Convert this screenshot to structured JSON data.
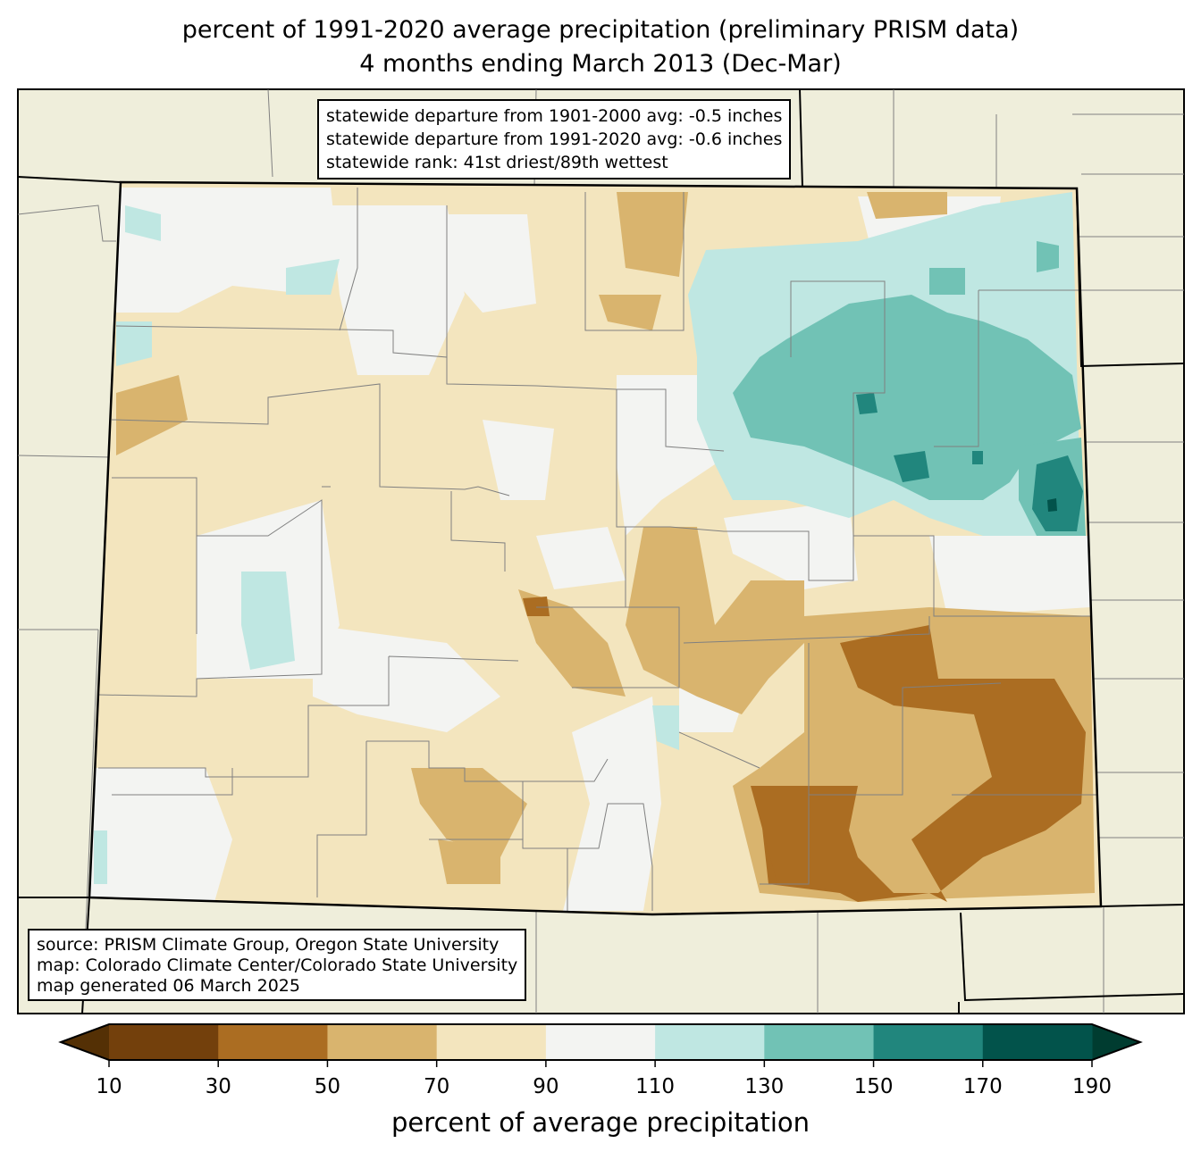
{
  "title": {
    "line1": "percent of 1991-2020 average precipitation (preliminary PRISM data)",
    "line2": "4 months ending March 2013 (Dec-Mar)"
  },
  "stats": {
    "line1": "statewide departure from 1901-2000 avg: -0.5 inches",
    "line2": "statewide departure from 1991-2020 avg: -0.6 inches",
    "line3": "statewide rank: 41st driest/89th wettest"
  },
  "source": {
    "line1": "source: PRISM Climate Group, Oregon State University",
    "line2": "map: Colorado Climate Center/Colorado State University",
    "line3": "map generated 06 March 2025"
  },
  "colorbar": {
    "label": "percent of average precipitation",
    "ticks": [
      "10",
      "30",
      "50",
      "70",
      "90",
      "110",
      "130",
      "150",
      "170",
      "190"
    ],
    "colors": [
      "#73400c",
      "#ab6d22",
      "#d9b46e",
      "#f3e5be",
      "#f3f4f2",
      "#bfe7e2",
      "#71c2b5",
      "#21867d",
      "#02534b"
    ],
    "under_color": "#543005",
    "over_color": "#003c30"
  },
  "map_colors": {
    "background": "#efeedb",
    "county_lines": "#808080"
  }
}
